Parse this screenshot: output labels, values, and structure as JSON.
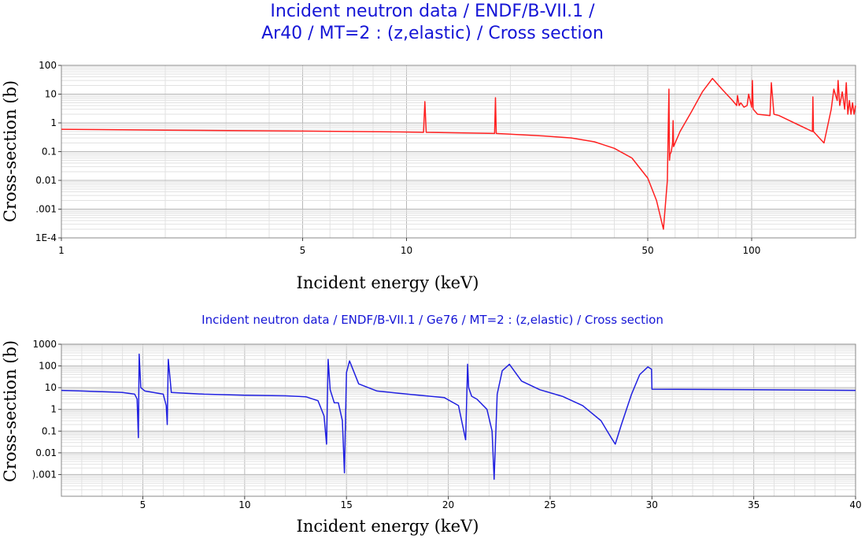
{
  "titles": {
    "top_line1": "Incident neutron data / ENDF/B-VII.1 /",
    "top_line2": "Ar40 / MT=2 : (z,elastic) / Cross section",
    "bottom": "Incident neutron data / ENDF/B-VII.1 / Ge76 / MT=2 : (z,elastic) / Cross section"
  },
  "colors": {
    "title": "#1515d6",
    "series_top": "#ff2020",
    "series_bottom": "#2020e0",
    "grid_major": "#b8b8b8",
    "grid_minor": "#e2e2e2"
  },
  "chart_data": [
    {
      "type": "line",
      "title": "Incident neutron data / ENDF/B-VII.1 / Ar40 / MT=2 : (z,elastic) / Cross section",
      "xlabel": "Incident energy (keV)",
      "ylabel": "Cross-section (b)",
      "xscale": "log",
      "yscale": "log",
      "xlim": [
        1,
        200
      ],
      "ylim": [
        0.0001,
        100
      ],
      "x_ticks": [
        1,
        5,
        10,
        50,
        100
      ],
      "x_tick_labels": [
        "1",
        "5",
        "10",
        "50",
        "100"
      ],
      "y_ticks": [
        0.0001,
        0.001,
        0.01,
        0.1,
        1,
        10,
        100
      ],
      "y_tick_labels": [
        "1E-4",
        ".001",
        "0.01",
        "0.1",
        "1",
        "10",
        "100"
      ],
      "grid": true,
      "series": [
        {
          "x": [
            1,
            2,
            5,
            10,
            11.2,
            11.3,
            11.4,
            18.0,
            18.1,
            18.2,
            25,
            30,
            35,
            40,
            45,
            50,
            53,
            55.5,
            57,
            57.6,
            57.8,
            58.0,
            58.5,
            59.0,
            59.2,
            59.4,
            62,
            67,
            72,
            77,
            82,
            88,
            90.5,
            91,
            92,
            93,
            95,
            97,
            98,
            100,
            100.5,
            101,
            104,
            113,
            114,
            116,
            120,
            150,
            150.5,
            151,
            162,
            170,
            173,
            177,
            178,
            180,
            183,
            186,
            188,
            190,
            192,
            194,
            196,
            198,
            200
          ],
          "y": [
            0.6,
            0.56,
            0.52,
            0.48,
            0.47,
            5.5,
            0.47,
            0.43,
            7.5,
            0.43,
            0.35,
            0.3,
            0.22,
            0.13,
            0.06,
            0.012,
            0.002,
            0.0002,
            0.01,
            15,
            0.05,
            0.08,
            0.1,
            0.2,
            1.2,
            0.15,
            0.5,
            2.5,
            12,
            35,
            15,
            6,
            4,
            9,
            4,
            5,
            3.5,
            4,
            10,
            3.5,
            30,
            3,
            2,
            1.8,
            25,
            2,
            1.8,
            0.5,
            8,
            0.5,
            0.2,
            3,
            15,
            6,
            30,
            4,
            12,
            3,
            25,
            2,
            6,
            2,
            5,
            2,
            4
          ]
        }
      ]
    },
    {
      "type": "line",
      "title": "Incident neutron data / ENDF/B-VII.1 / Ge76 / MT=2 : (z,elastic) / Cross section",
      "xlabel": "Incident energy (keV)",
      "ylabel": "Cross-section (b)",
      "xscale": "linear",
      "yscale": "log",
      "xlim": [
        1,
        40
      ],
      "ylim": [
        0.0001,
        1000
      ],
      "x_ticks": [
        5,
        10,
        15,
        20,
        25,
        30,
        35,
        40
      ],
      "x_tick_labels": [
        "5",
        "10",
        "15",
        "20",
        "25",
        "30",
        "35",
        "40"
      ],
      "y_ticks": [
        0.001,
        0.01,
        0.1,
        1,
        10,
        100,
        1000
      ],
      "y_tick_labels": [
        ").001",
        "0.01",
        "0.1",
        "1",
        "10",
        "100",
        "1000"
      ],
      "grid": true,
      "series": [
        {
          "x": [
            1,
            2,
            3,
            4,
            4.6,
            4.72,
            4.78,
            4.82,
            4.9,
            5.1,
            6.0,
            6.15,
            6.2,
            6.25,
            6.4,
            8,
            10,
            12,
            13,
            13.6,
            13.9,
            14.02,
            14.1,
            14.2,
            14.4,
            14.6,
            14.8,
            14.9,
            15.0,
            15.15,
            15.6,
            16.5,
            18,
            19.8,
            20.5,
            20.85,
            20.95,
            21.0,
            21.15,
            21.4,
            21.9,
            22.15,
            22.25,
            22.4,
            22.65,
            23,
            23.6,
            24.5,
            25.6,
            26.6,
            27.5,
            28.0,
            28.2,
            28.5,
            29,
            29.4,
            29.8,
            29.98,
            30.0,
            35,
            40
          ],
          "y": [
            7.5,
            7,
            6.5,
            6,
            5,
            3,
            0.05,
            350,
            10,
            7,
            5,
            1.5,
            0.2,
            200,
            6,
            5,
            4.5,
            4.2,
            3.8,
            2.5,
            0.5,
            0.025,
            200,
            8,
            2,
            2,
            0.3,
            0.0012,
            50,
            170,
            15,
            7,
            5,
            3.5,
            1.5,
            0.04,
            120,
            10,
            4,
            3,
            1,
            0.1,
            0.0006,
            5,
            60,
            120,
            20,
            8,
            4,
            1.5,
            0.3,
            0.05,
            0.025,
            0.2,
            5,
            40,
            90,
            70,
            8.5,
            8,
            7.5
          ]
        }
      ]
    }
  ]
}
